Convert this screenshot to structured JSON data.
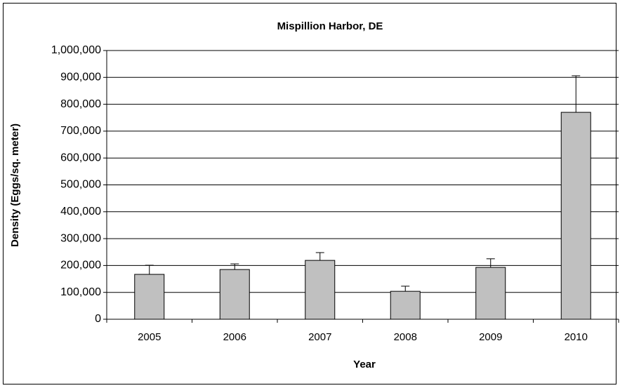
{
  "chart_data": {
    "type": "bar",
    "title": "Mispillion Harbor, DE",
    "x_label": "Year",
    "y_label": "Density (Eggs/sq. meter)",
    "categories": [
      "2005",
      "2006",
      "2007",
      "2008",
      "2009",
      "2010"
    ],
    "values": [
      167000,
      185000,
      219000,
      104000,
      193000,
      770000
    ],
    "errors": [
      34000,
      21000,
      29000,
      19000,
      32000,
      136000
    ],
    "color": "#c0c0c0",
    "ylim": [
      0,
      1000000
    ],
    "yticks": [
      0,
      {
        "value": 100000,
        "label": "100,000"
      },
      {
        "value": 200000,
        "label": "200,000"
      },
      {
        "value": 300000,
        "label": "300,000"
      },
      {
        "value": 400000,
        "label": "400,000"
      },
      {
        "value": 500000,
        "label": "500,000"
      },
      {
        "value": 600000,
        "label": "600,000"
      },
      {
        "value": 700000,
        "label": "700,000"
      },
      {
        "value": 800000,
        "label": "800,000"
      },
      {
        "value": 900000,
        "label": "900,000"
      },
      {
        "value": 1000000,
        "label": "1,000,000"
      }
    ],
    "grid": true
  }
}
